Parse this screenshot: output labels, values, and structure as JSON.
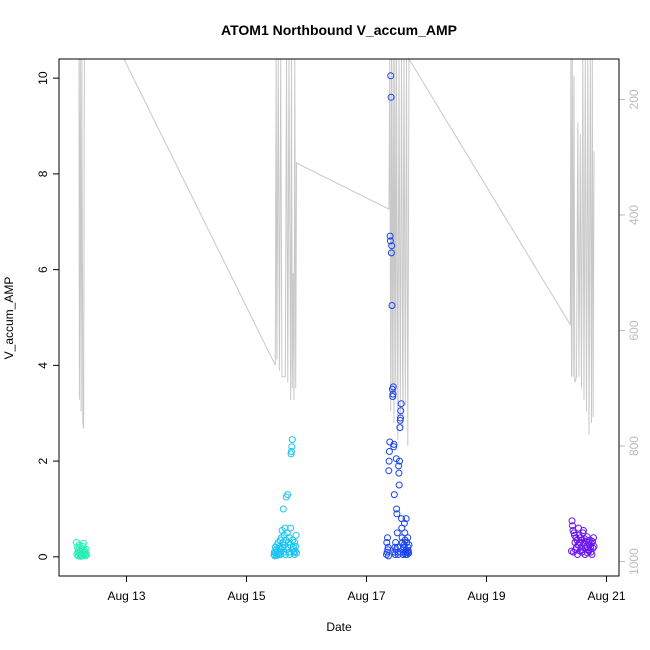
{
  "chart_data": {
    "type": "scatter",
    "title": "ATOM1 Northbound V_accum_AMP",
    "xlabel": "Date",
    "ylabel": "V_accum_AMP",
    "x_range": [
      "2024-08-11T21:00",
      "2024-08-21T05:00"
    ],
    "ylim": [
      -0.4,
      10.4
    ],
    "x_ticks": [
      {
        "date": "2024-08-13T00:00",
        "label": "Aug 13"
      },
      {
        "date": "2024-08-15T00:00",
        "label": "Aug 15"
      },
      {
        "date": "2024-08-17T00:00",
        "label": "Aug 17"
      },
      {
        "date": "2024-08-19T00:00",
        "label": "Aug 19"
      },
      {
        "date": "2024-08-21T00:00",
        "label": "Aug 21"
      }
    ],
    "y_ticks": [
      0,
      2,
      4,
      6,
      8,
      10
    ],
    "secondary_axis": {
      "color": "#bbbbbb",
      "inverted": true,
      "range": [
        1025,
        130
      ],
      "ticks": [
        200,
        400,
        600,
        800,
        1000
      ]
    },
    "grey_line": {
      "color": "#c8c8c8",
      "points": [
        [
          "2024-08-12T05:00",
          130
        ],
        [
          "2024-08-12T05:10",
          720
        ],
        [
          "2024-08-12T05:30",
          130
        ],
        [
          "2024-08-12T05:50",
          740
        ],
        [
          "2024-08-12T06:10",
          130
        ],
        [
          "2024-08-12T06:30",
          760
        ],
        [
          "2024-08-12T06:50",
          770
        ],
        [
          "2024-08-12T07:10",
          130
        ],
        [
          "2024-08-12T23:00",
          130
        ],
        [
          "2024-08-15T11:30",
          660
        ],
        [
          "2024-08-15T11:50",
          130
        ],
        [
          "2024-08-15T12:10",
          650
        ],
        [
          "2024-08-15T12:40",
          130
        ],
        [
          "2024-08-15T13:10",
          670
        ],
        [
          "2024-08-15T13:40",
          130
        ],
        [
          "2024-08-15T14:10",
          680
        ],
        [
          "2024-08-15T15:30",
          680
        ],
        [
          "2024-08-15T16:00",
          130
        ],
        [
          "2024-08-15T16:30",
          690
        ],
        [
          "2024-08-15T17:00",
          130
        ],
        [
          "2024-08-15T17:40",
          720
        ],
        [
          "2024-08-15T18:00",
          130
        ],
        [
          "2024-08-15T18:20",
          700
        ],
        [
          "2024-08-15T18:40",
          500
        ],
        [
          "2024-08-15T19:00",
          720
        ],
        [
          "2024-08-15T19:20",
          130
        ],
        [
          "2024-08-15T19:40",
          700
        ],
        [
          "2024-08-15T20:00",
          310
        ],
        [
          "2024-08-17T09:00",
          390
        ],
        [
          "2024-08-17T09:20",
          130
        ],
        [
          "2024-08-17T09:40",
          740
        ],
        [
          "2024-08-17T10:00",
          130
        ],
        [
          "2024-08-17T10:20",
          710
        ],
        [
          "2024-08-17T10:40",
          130
        ],
        [
          "2024-08-17T11:00",
          760
        ],
        [
          "2024-08-17T11:20",
          130
        ],
        [
          "2024-08-17T11:40",
          720
        ],
        [
          "2024-08-17T12:00",
          130
        ],
        [
          "2024-08-17T12:30",
          790
        ],
        [
          "2024-08-17T13:00",
          130
        ],
        [
          "2024-08-17T13:30",
          750
        ],
        [
          "2024-08-17T14:00",
          130
        ],
        [
          "2024-08-17T14:30",
          770
        ],
        [
          "2024-08-17T15:00",
          130
        ],
        [
          "2024-08-17T15:30",
          730
        ],
        [
          "2024-08-17T16:00",
          130
        ],
        [
          "2024-08-17T16:30",
          800
        ],
        [
          "2024-08-17T17:00",
          130
        ],
        [
          "2024-08-20T09:30",
          590
        ],
        [
          "2024-08-20T09:45",
          130
        ],
        [
          "2024-08-20T10:00",
          680
        ],
        [
          "2024-08-20T10:20",
          130
        ],
        [
          "2024-08-20T10:40",
          680
        ],
        [
          "2024-08-20T11:00",
          160
        ],
        [
          "2024-08-20T11:20",
          690
        ],
        [
          "2024-08-20T12:00",
          680
        ],
        [
          "2024-08-20T12:30",
          240
        ],
        [
          "2024-08-20T13:00",
          680
        ],
        [
          "2024-08-20T13:30",
          260
        ],
        [
          "2024-08-20T14:00",
          700
        ],
        [
          "2024-08-20T14:30",
          130
        ],
        [
          "2024-08-20T15:00",
          720
        ],
        [
          "2024-08-20T15:30",
          130
        ],
        [
          "2024-08-20T16:00",
          740
        ],
        [
          "2024-08-20T16:30",
          130
        ],
        [
          "2024-08-20T17:00",
          780
        ],
        [
          "2024-08-20T17:30",
          130
        ],
        [
          "2024-08-20T18:00",
          760
        ],
        [
          "2024-08-20T18:20",
          130
        ],
        [
          "2024-08-20T18:40",
          750
        ],
        [
          "2024-08-20T19:00",
          290
        ]
      ]
    },
    "series": [
      {
        "color": "#22f0b4",
        "x_start": "2024-08-12T04:00",
        "x_end": "2024-08-12T08:00",
        "y": [
          0.3,
          0.05,
          0.2,
          0.1,
          0.02,
          0.15,
          0.25,
          0.08,
          0.05,
          0.12,
          0.01,
          0.18,
          0.07,
          0.03,
          0.22,
          0.1,
          0.28,
          0.04,
          0.14,
          0.06,
          0.09,
          0.02,
          0.16,
          0.05
        ]
      },
      {
        "color": "#19c4f2",
        "x_start": "2024-08-15T11:00",
        "x_end": "2024-08-15T20:00",
        "y": [
          0.05,
          0.1,
          0.02,
          0.2,
          0.08,
          0.15,
          0.03,
          0.25,
          0.12,
          0.06,
          0.3,
          0.04,
          0.18,
          0.22,
          0.1,
          0.35,
          0.05,
          0.4,
          0.15,
          0.55,
          0.2,
          0.3,
          1.0,
          0.1,
          0.45,
          0.25,
          0.6,
          0.05,
          0.35,
          1.25,
          0.15,
          0.5,
          1.3,
          0.2,
          0.3,
          0.1,
          0.4,
          0.05,
          0.25,
          0.6,
          2.15,
          2.2,
          2.3,
          2.45,
          0.35,
          0.15,
          0.2,
          0.1,
          0.05,
          0.3,
          0.12,
          0.22,
          0.45,
          0.08
        ]
      },
      {
        "color": "#1a44f0",
        "x_start": "2024-08-17T08:00",
        "x_end": "2024-08-17T17:00",
        "y": [
          0.05,
          0.3,
          0.1,
          0.4,
          0.15,
          0.2,
          0.02,
          1.8,
          2.0,
          2.2,
          2.4,
          6.7,
          6.6,
          10.05,
          9.6,
          6.35,
          6.5,
          5.25,
          3.5,
          3.35,
          3.4,
          3.55,
          2.3,
          2.35,
          1.3,
          0.1,
          0.2,
          0.05,
          0.3,
          0.15,
          2.05,
          1.0,
          0.9,
          0.5,
          0.2,
          0.1,
          0.05,
          1.9,
          1.75,
          1.5,
          2.0,
          2.7,
          2.85,
          2.9,
          3.05,
          3.2,
          0.8,
          0.6,
          0.4,
          0.3,
          0.15,
          0.05,
          0.1,
          0.2,
          0.25,
          0.7,
          0.5,
          0.35,
          0.1,
          0.05,
          0.8,
          0.15,
          0.3,
          0.05,
          0.1,
          0.4,
          0.2,
          0.12,
          0.08,
          0.25
        ]
      },
      {
        "color": "#6a14f0",
        "x_start": "2024-08-20T10:00",
        "x_end": "2024-08-20T19:00",
        "y": [
          0.12,
          0.75,
          0.65,
          0.55,
          0.1,
          0.5,
          0.45,
          0.3,
          0.15,
          0.4,
          0.2,
          0.35,
          0.05,
          0.25,
          0.6,
          0.45,
          0.3,
          0.12,
          0.4,
          0.2,
          0.35,
          0.1,
          0.15,
          0.5,
          0.55,
          0.28,
          0.38,
          0.05,
          0.18,
          0.33,
          0.22,
          0.42,
          0.08,
          0.15,
          0.3,
          0.12,
          0.25,
          0.35,
          0.2,
          0.1,
          0.28,
          0.05,
          0.32,
          0.18,
          0.4,
          0.22
        ]
      }
    ]
  }
}
